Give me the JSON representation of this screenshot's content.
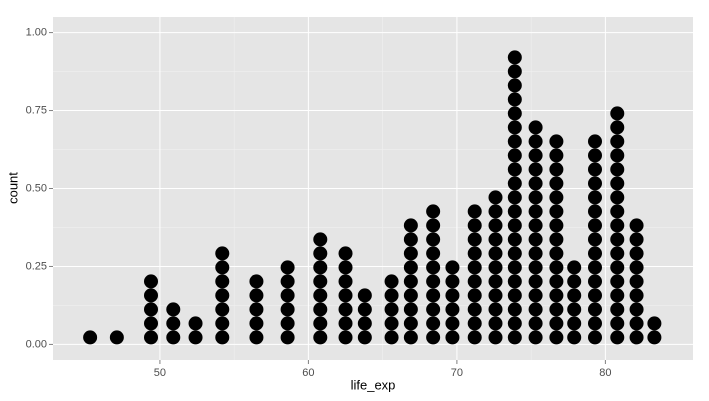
{
  "chart_data": {
    "type": "dotplot",
    "x_label": "life_exp",
    "y_label": "count",
    "x": [
      45.3,
      47.1,
      49.4,
      50.9,
      52.4,
      54.2,
      56.5,
      58.6,
      60.8,
      62.5,
      63.8,
      65.6,
      66.9,
      68.4,
      69.7,
      71.2,
      72.6,
      73.9,
      75.3,
      76.7,
      77.9,
      79.3,
      80.8,
      82.1,
      83.3
    ],
    "counts": [
      1,
      1,
      5,
      3,
      2,
      7,
      5,
      6,
      8,
      7,
      4,
      5,
      9,
      10,
      6,
      10,
      11,
      21,
      16,
      15,
      6,
      15,
      17,
      9,
      2
    ],
    "color": "#000000",
    "xlim": [
      42.8,
      85.9
    ],
    "xticks": [
      50,
      60,
      70,
      80
    ],
    "ylim": [
      -0.05,
      1.05
    ],
    "yticks": [
      {
        "value": 0,
        "label": "0.00"
      },
      {
        "value": 0.25,
        "label": "0.25"
      },
      {
        "value": 0.5,
        "label": "0.50"
      },
      {
        "value": 0.75,
        "label": "0.75"
      },
      {
        "value": 1,
        "label": "1.00"
      }
    ],
    "grid": true
  }
}
